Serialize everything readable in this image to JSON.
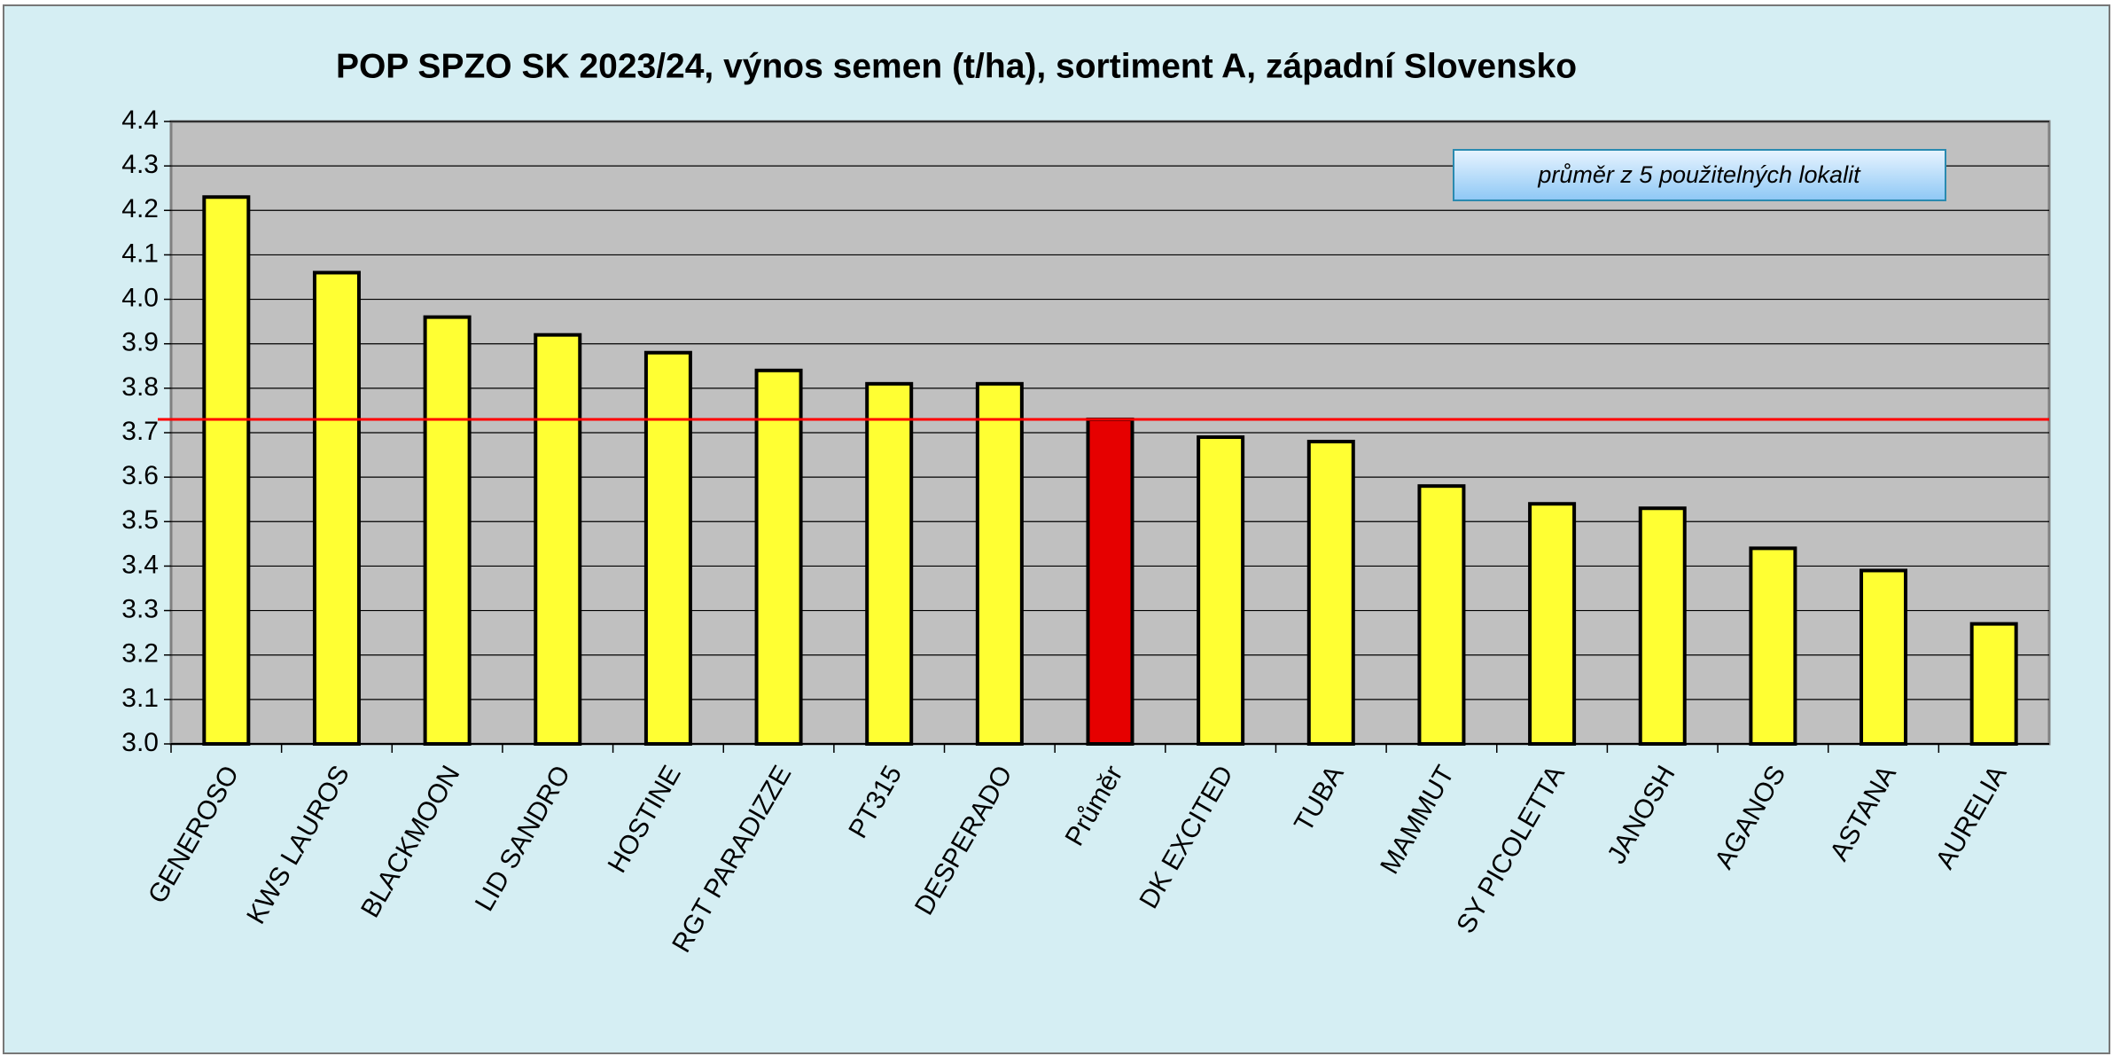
{
  "chart_data": {
    "type": "bar",
    "title": "POP SPZO SK 2023/24, výnos semen (t/ha), sortiment A, západní Slovensko",
    "annotation": "průměr z 5 použitelných lokalit",
    "categories": [
      "GENEROSO",
      "KWS LAUROS",
      "BLACKMOON",
      "LID SANDRO",
      "HOSTINE",
      "RGT PARADIZZE",
      "PT315",
      "DESPERADO",
      "Průměr",
      "DK EXCITED",
      "TUBA",
      "MAMMUT",
      "SY PICOLETTA",
      "JANOSH",
      "AGANOS",
      "ASTANA",
      "AURELIA"
    ],
    "values": [
      4.23,
      4.06,
      3.96,
      3.92,
      3.88,
      3.84,
      3.81,
      3.81,
      3.73,
      3.69,
      3.68,
      3.58,
      3.54,
      3.53,
      3.44,
      3.39,
      3.27
    ],
    "colors": [
      "#ffff33",
      "#ffff33",
      "#ffff33",
      "#ffff33",
      "#ffff33",
      "#ffff33",
      "#ffff33",
      "#ffff33",
      "#e60000",
      "#ffff33",
      "#ffff33",
      "#ffff33",
      "#ffff33",
      "#ffff33",
      "#ffff33",
      "#ffff33",
      "#ffff33"
    ],
    "reference_line": 3.73,
    "reference_color": "#ff0000",
    "ylim": [
      3.0,
      4.4
    ],
    "yticks": [
      {
        "value": 3.0,
        "label": "3.0"
      },
      3.1,
      3.2,
      3.3,
      3.4,
      3.5,
      3.6,
      3.7,
      3.8,
      3.9,
      {
        "value": 4.0,
        "label": "4.0"
      },
      4.1,
      4.2,
      4.3,
      4.4
    ],
    "grid": true
  }
}
